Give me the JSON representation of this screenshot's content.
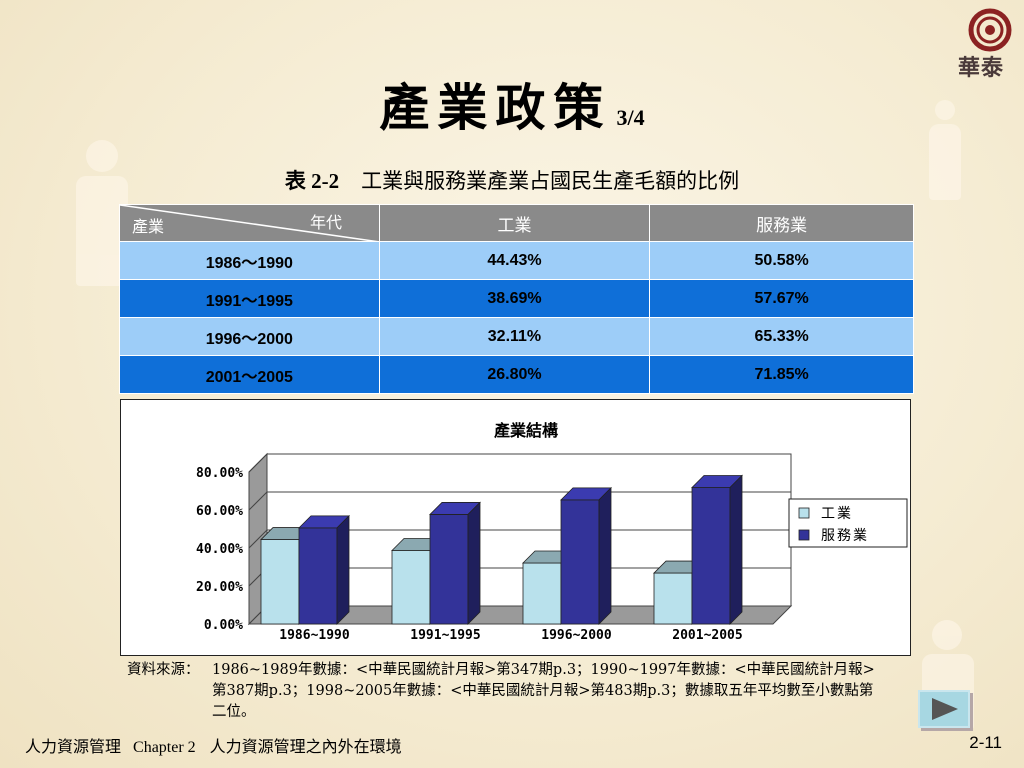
{
  "slide": {
    "title": "產業政策",
    "title_page": "3/4",
    "logo_text": "華泰"
  },
  "caption": {
    "number": "表 2-2",
    "text": "工業與服務業產業占國民生產毛額的比例"
  },
  "table": {
    "corner_row_label": "產業",
    "corner_col_label": "年代",
    "headers": [
      "工業",
      "服務業"
    ],
    "rows": [
      {
        "period": "1986～1990",
        "industry": "44.43%",
        "service": "50.58%"
      },
      {
        "period": "1991～1995",
        "industry": "38.69%",
        "service": "57.67%"
      },
      {
        "period": "1996～2000",
        "industry": "32.11%",
        "service": "65.33%"
      },
      {
        "period": "2001～2005",
        "industry": "26.80%",
        "service": "71.85%"
      }
    ]
  },
  "chart_data": {
    "type": "bar",
    "title": "產業結構",
    "categories": [
      "1986~1990",
      "1991~1995",
      "1996~2000",
      "2001~2005"
    ],
    "series": [
      {
        "name": "工業",
        "values": [
          44.43,
          38.69,
          32.11,
          26.8
        ],
        "color": "#b9e1ec"
      },
      {
        "name": "服務業",
        "values": [
          50.58,
          57.67,
          65.33,
          71.85
        ],
        "color": "#333399"
      }
    ],
    "ylim": [
      0,
      80
    ],
    "yticks": [
      "0.00%",
      "20.00%",
      "40.00%",
      "60.00%",
      "80.00%"
    ],
    "grid": true,
    "legend": "right"
  },
  "source": {
    "label": "資料來源：",
    "text": "1986~1989年數據：<中華民國統計月報>第347期p.3；1990~1997年數據：<中華民國統計月報> 第387期p.3；1998~2005年數據：<中華民國統計月報>第483期p.3；數據取五年平均數至小數點第二位。"
  },
  "footer": {
    "left": "人力資源管理",
    "chapter": "Chapter 2",
    "topic": "人力資源管理之內外在環境",
    "page": "2-11"
  }
}
